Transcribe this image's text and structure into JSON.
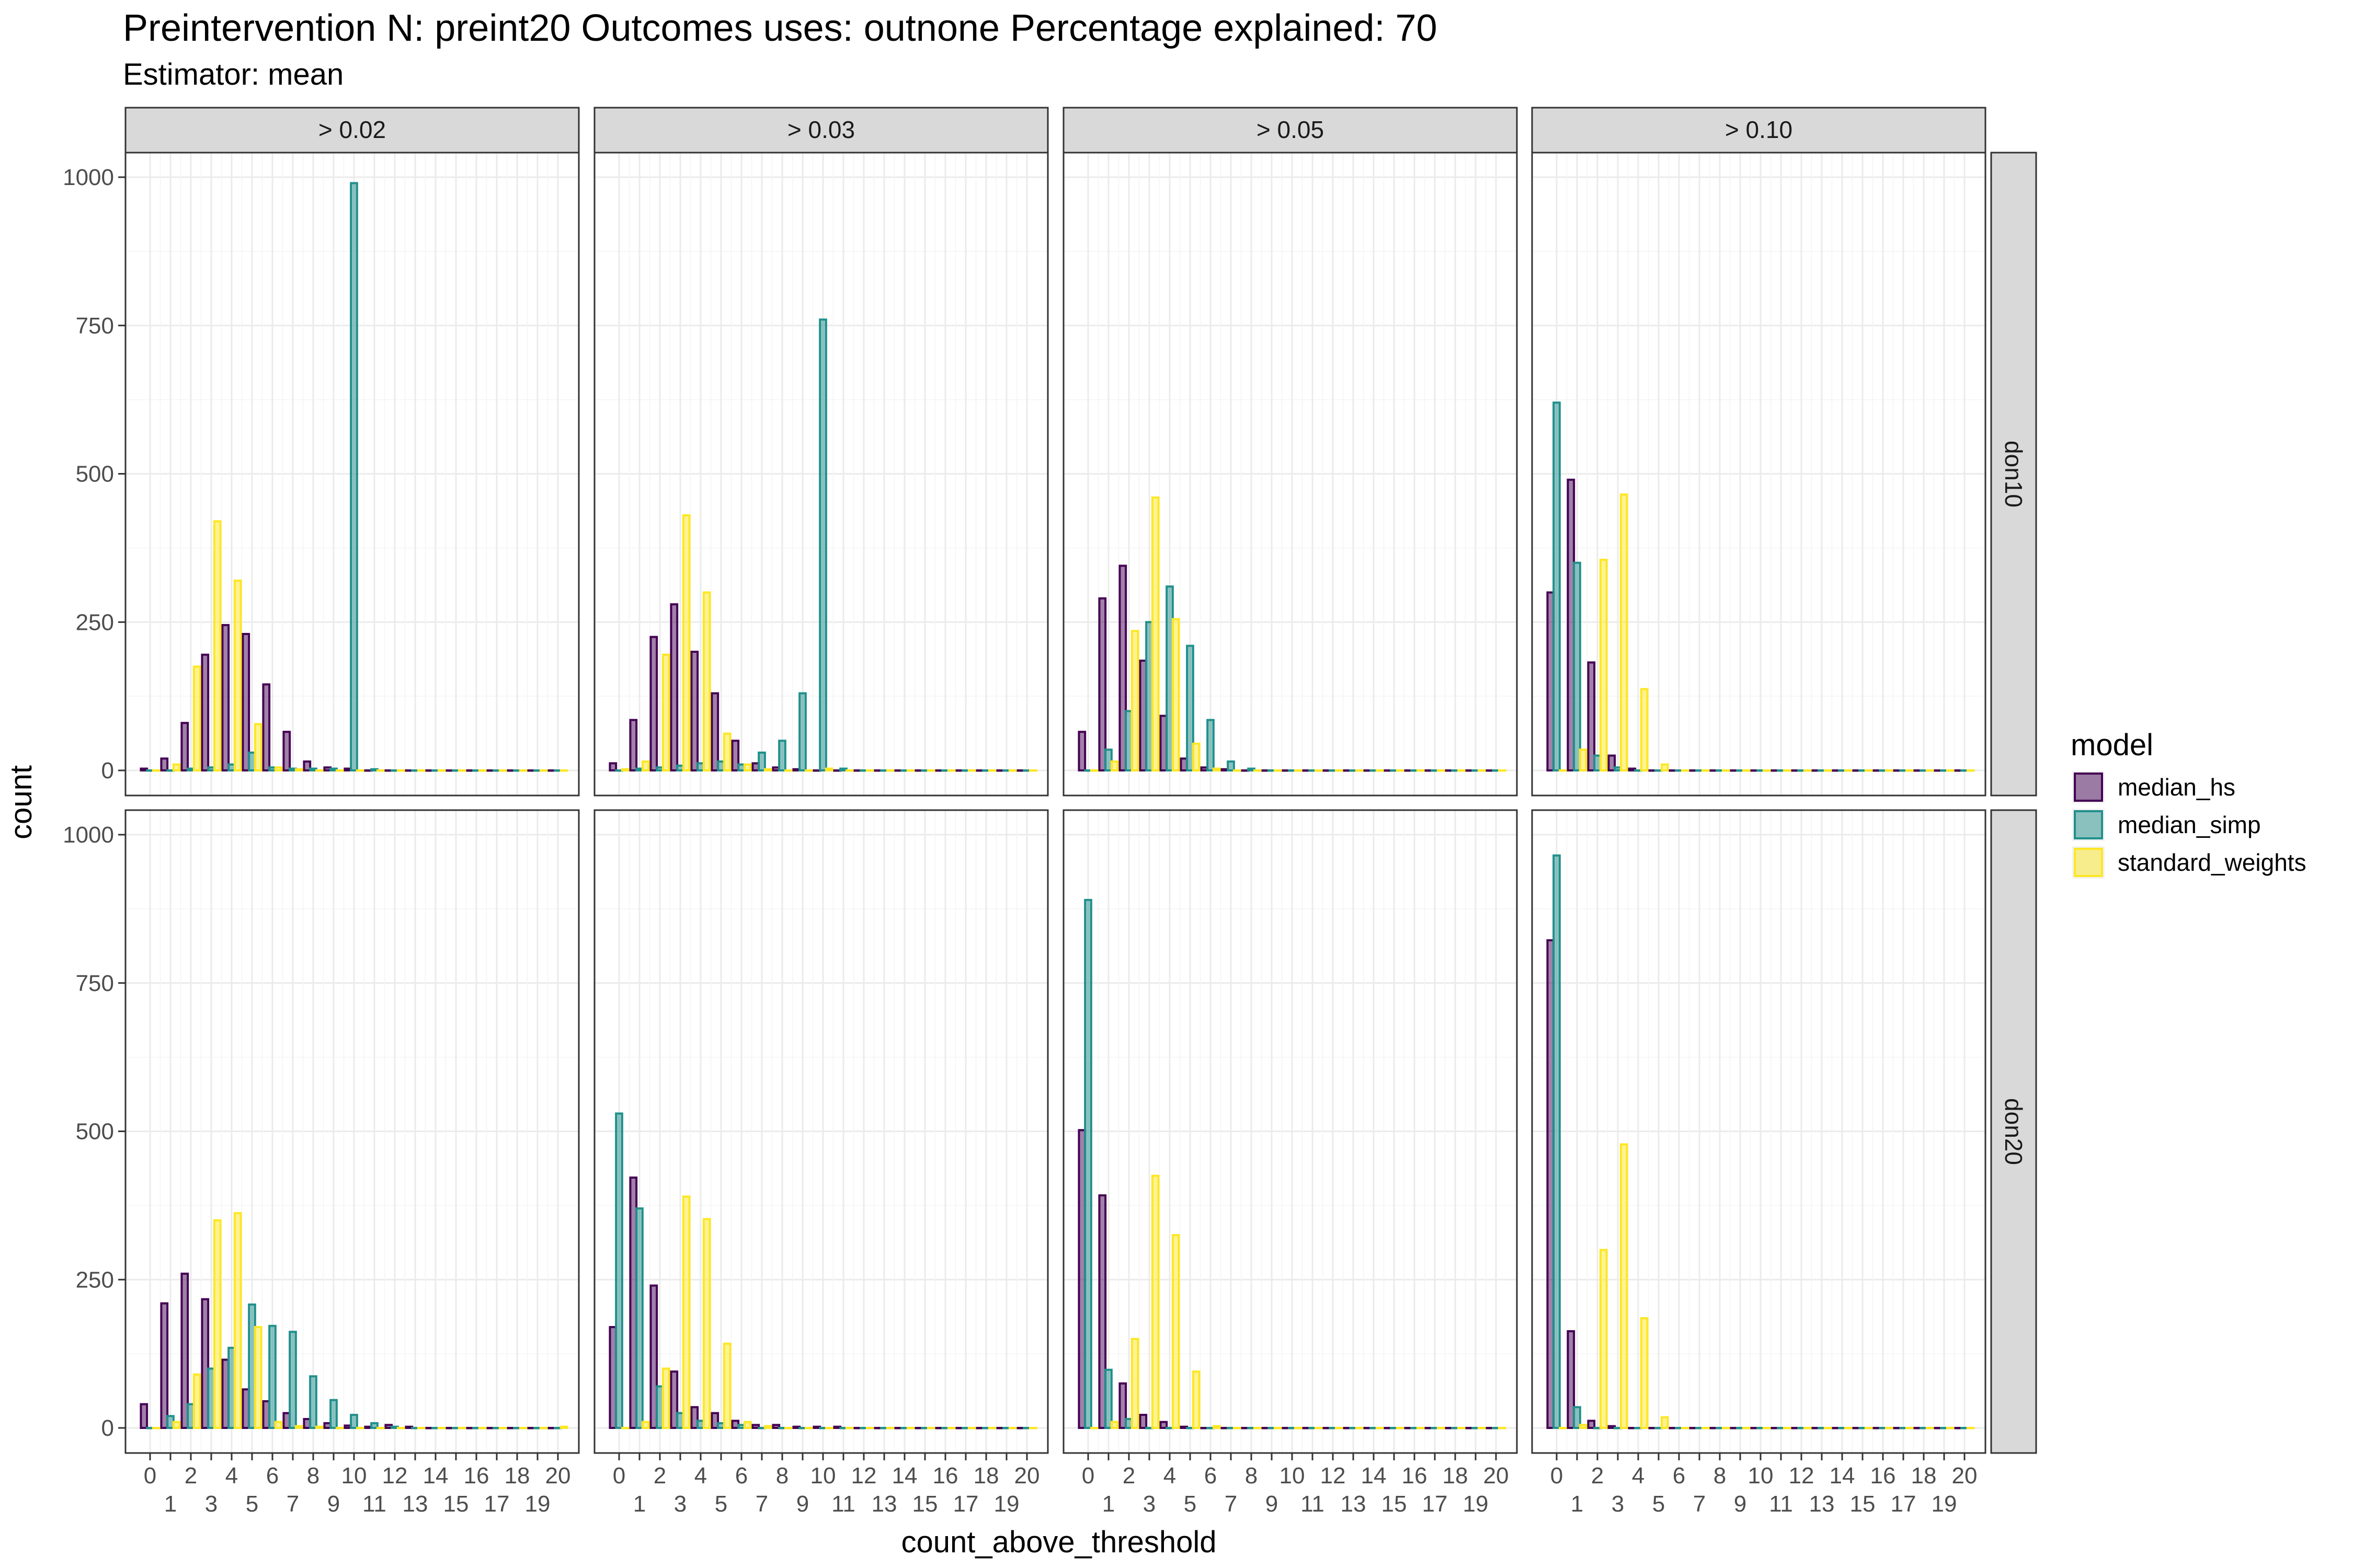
{
  "chart_data": {
    "type": "bar",
    "title": "Preintervention N: preint20 Outcomes uses: outnone Percentage explained: 70",
    "subtitle": "Estimator: mean",
    "xlabel": "count_above_threshold",
    "ylabel": "count",
    "ylim": [
      0,
      1000
    ],
    "yticks": [
      0,
      250,
      500,
      750,
      1000
    ],
    "xrange": [
      0,
      20
    ],
    "xticks_top": [
      "0",
      "2",
      "4",
      "6",
      "8",
      "10",
      "12",
      "14",
      "16",
      "18",
      "20"
    ],
    "xticks_bottom": [
      "1",
      "3",
      "5",
      "7",
      "9",
      "11",
      "13",
      "15",
      "17",
      "19"
    ],
    "grid": true,
    "legend_position": "right",
    "legend": {
      "title": "model",
      "entries": [
        {
          "name": "median_hs",
          "color": "#440154"
        },
        {
          "name": "median_simp",
          "color": "#21908C"
        },
        {
          "name": "standard_weights",
          "color": "#FDE725"
        }
      ]
    },
    "column_facets": [
      "> 0.02",
      "> 0.03",
      "> 0.05",
      "> 0.10"
    ],
    "row_facets": [
      "don10",
      "don20"
    ],
    "panels": [
      {
        "row": 0,
        "col": 0,
        "series": [
          {
            "name": "median_hs",
            "values": [
              3,
              20,
              80,
              195,
              245,
              230,
              145,
              65,
              15,
              5,
              3,
              0,
              0,
              0,
              0,
              0,
              0,
              0,
              0,
              0,
              0
            ]
          },
          {
            "name": "median_simp",
            "values": [
              0,
              0,
              3,
              5,
              10,
              30,
              5,
              3,
              3,
              3,
              990,
              2,
              0,
              0,
              0,
              0,
              0,
              0,
              0,
              0,
              0
            ]
          },
          {
            "name": "standard_weights",
            "values": [
              0,
              10,
              175,
              420,
              320,
              78,
              5,
              2,
              0,
              0,
              0,
              0,
              0,
              0,
              0,
              0,
              0,
              0,
              0,
              0,
              0
            ]
          }
        ]
      },
      {
        "row": 0,
        "col": 1,
        "series": [
          {
            "name": "median_hs",
            "values": [
              12,
              85,
              225,
              280,
              200,
              130,
              50,
              12,
              5,
              2,
              0,
              0,
              0,
              0,
              0,
              0,
              0,
              0,
              0,
              0,
              0
            ]
          },
          {
            "name": "median_simp",
            "values": [
              0,
              3,
              5,
              8,
              12,
              15,
              10,
              30,
              50,
              130,
              760,
              3,
              0,
              0,
              0,
              0,
              0,
              0,
              0,
              0,
              0
            ]
          },
          {
            "name": "standard_weights",
            "values": [
              2,
              15,
              195,
              430,
              300,
              62,
              10,
              2,
              0,
              0,
              3,
              0,
              0,
              0,
              0,
              0,
              0,
              0,
              0,
              0,
              0
            ]
          }
        ]
      },
      {
        "row": 0,
        "col": 2,
        "series": [
          {
            "name": "median_hs",
            "values": [
              65,
              290,
              345,
              185,
              92,
              20,
              5,
              2,
              0,
              0,
              0,
              0,
              0,
              0,
              0,
              0,
              0,
              0,
              0,
              0,
              0
            ]
          },
          {
            "name": "median_simp",
            "values": [
              0,
              35,
              100,
              250,
              310,
              210,
              85,
              15,
              3,
              0,
              0,
              0,
              0,
              0,
              0,
              0,
              0,
              0,
              0,
              0,
              0
            ]
          },
          {
            "name": "standard_weights",
            "values": [
              0,
              15,
              235,
              460,
              255,
              45,
              3,
              0,
              0,
              0,
              0,
              0,
              0,
              0,
              0,
              0,
              0,
              0,
              0,
              0,
              0
            ]
          }
        ]
      },
      {
        "row": 0,
        "col": 3,
        "series": [
          {
            "name": "median_hs",
            "values": [
              300,
              490,
              182,
              25,
              3,
              0,
              0,
              0,
              0,
              0,
              0,
              0,
              0,
              0,
              0,
              0,
              0,
              0,
              0,
              0,
              0
            ]
          },
          {
            "name": "median_simp",
            "values": [
              620,
              350,
              25,
              5,
              0,
              0,
              0,
              0,
              0,
              0,
              0,
              0,
              0,
              0,
              0,
              0,
              0,
              0,
              0,
              0,
              0
            ]
          },
          {
            "name": "standard_weights",
            "values": [
              0,
              35,
              355,
              465,
              137,
              10,
              0,
              0,
              0,
              0,
              0,
              0,
              0,
              0,
              0,
              0,
              0,
              0,
              0,
              0,
              0
            ]
          }
        ]
      },
      {
        "row": 1,
        "col": 0,
        "series": [
          {
            "name": "median_hs",
            "values": [
              40,
              210,
              260,
              217,
              115,
              65,
              45,
              25,
              15,
              8,
              4,
              2,
              5,
              2,
              0,
              0,
              0,
              0,
              0,
              0,
              0
            ]
          },
          {
            "name": "median_simp",
            "values": [
              0,
              20,
              40,
              100,
              135,
              208,
              172,
              162,
              87,
              47,
              22,
              8,
              2,
              0,
              0,
              0,
              0,
              0,
              0,
              0,
              0
            ]
          },
          {
            "name": "standard_weights",
            "values": [
              0,
              10,
              90,
              350,
              362,
              170,
              10,
              3,
              2,
              0,
              0,
              0,
              0,
              0,
              0,
              0,
              0,
              0,
              0,
              0,
              2
            ]
          }
        ]
      },
      {
        "row": 1,
        "col": 1,
        "series": [
          {
            "name": "median_hs",
            "values": [
              170,
              422,
              240,
              95,
              35,
              25,
              12,
              5,
              5,
              2,
              2,
              2,
              0,
              0,
              0,
              0,
              0,
              0,
              0,
              0,
              0
            ]
          },
          {
            "name": "median_simp",
            "values": [
              530,
              370,
              70,
              25,
              12,
              8,
              5,
              0,
              0,
              0,
              0,
              0,
              0,
              0,
              0,
              0,
              0,
              0,
              0,
              0,
              0
            ]
          },
          {
            "name": "standard_weights",
            "values": [
              0,
              10,
              100,
              390,
              352,
              142,
              10,
              3,
              0,
              0,
              0,
              0,
              0,
              0,
              0,
              0,
              0,
              0,
              0,
              0,
              0
            ]
          }
        ]
      },
      {
        "row": 1,
        "col": 2,
        "series": [
          {
            "name": "median_hs",
            "values": [
              502,
              392,
              75,
              22,
              10,
              2,
              0,
              0,
              0,
              0,
              0,
              0,
              0,
              0,
              0,
              0,
              0,
              0,
              0,
              0,
              0
            ]
          },
          {
            "name": "median_simp",
            "values": [
              890,
              98,
              15,
              0,
              0,
              0,
              0,
              0,
              0,
              0,
              0,
              0,
              0,
              0,
              0,
              0,
              0,
              0,
              0,
              0,
              0
            ]
          },
          {
            "name": "standard_weights",
            "values": [
              0,
              10,
              150,
              425,
              325,
              95,
              3,
              0,
              0,
              0,
              0,
              0,
              0,
              0,
              0,
              0,
              0,
              0,
              0,
              0,
              0
            ]
          }
        ]
      },
      {
        "row": 1,
        "col": 3,
        "series": [
          {
            "name": "median_hs",
            "values": [
              822,
              163,
              12,
              3,
              0,
              0,
              0,
              0,
              0,
              0,
              0,
              0,
              0,
              0,
              0,
              0,
              0,
              0,
              0,
              0,
              0
            ]
          },
          {
            "name": "median_simp",
            "values": [
              965,
              35,
              0,
              0,
              0,
              0,
              0,
              0,
              0,
              0,
              0,
              0,
              0,
              0,
              0,
              0,
              0,
              0,
              0,
              0,
              0
            ]
          },
          {
            "name": "standard_weights",
            "values": [
              0,
              5,
              300,
              478,
              185,
              18,
              0,
              0,
              0,
              0,
              0,
              0,
              0,
              0,
              0,
              0,
              0,
              0,
              0,
              0,
              0
            ]
          }
        ]
      }
    ]
  }
}
